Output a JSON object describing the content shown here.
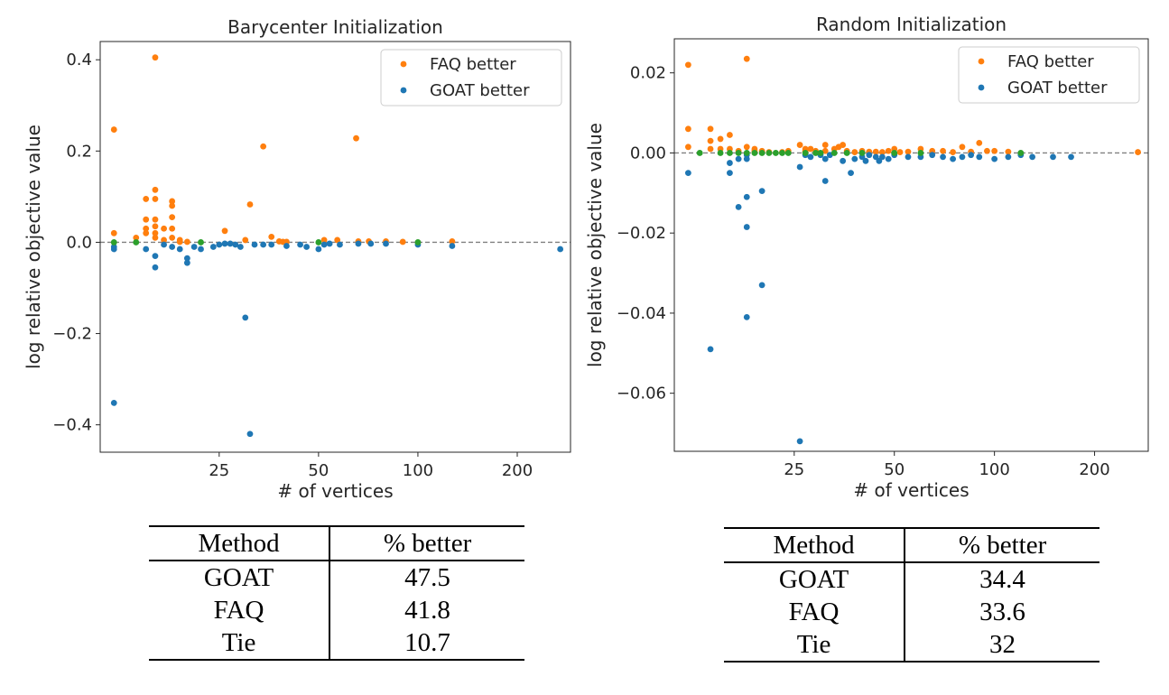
{
  "colors": {
    "faq": "#ff7f0e",
    "goat": "#1f77b4",
    "tie": "#2ca02c",
    "baseline": "#808080",
    "axis": "#262626"
  },
  "chart_data": [
    {
      "type": "scatter",
      "title": "Barycenter Initialization",
      "xlabel": "# of vertices",
      "ylabel": "log relative objective value",
      "xscale": "log",
      "xlim": [
        10.9,
        290
      ],
      "ylim": [
        -0.46,
        0.44
      ],
      "xticks": [
        25,
        50,
        100,
        200
      ],
      "xtick_labels": [
        "25",
        "50",
        "100",
        "200"
      ],
      "yticks": [
        -0.4,
        -0.2,
        0.0,
        0.2,
        0.4
      ],
      "ytick_labels": [
        "−0.4",
        "−0.2",
        "0.0",
        "0.2",
        "0.4"
      ],
      "baseline": 0,
      "legend": {
        "position": "top-right",
        "entries": [
          "FAQ better",
          "GOAT better"
        ]
      },
      "series": [
        {
          "name": "FAQ better",
          "color_key": "faq",
          "x": [
            12,
            12,
            14,
            15,
            15,
            15,
            15,
            16,
            16,
            16,
            16,
            16,
            16,
            16,
            17,
            17,
            18,
            18,
            18,
            18,
            18,
            19,
            19,
            19,
            20,
            26,
            30,
            31,
            34,
            36,
            38,
            39,
            40,
            52,
            57,
            65,
            66,
            71,
            80,
            90,
            127
          ],
          "y": [
            0.247,
            0.02,
            0.01,
            0.095,
            0.05,
            0.03,
            0.02,
            0.405,
            0.115,
            0.095,
            0.05,
            0.035,
            0.02,
            0.01,
            0.03,
            0.005,
            0.09,
            0.08,
            0.055,
            0.03,
            0.01,
            0.005,
            0.002,
            0.001,
            0.001,
            0.025,
            0.005,
            0.083,
            0.21,
            0.012,
            0.002,
            0.001,
            0.001,
            0.005,
            0.005,
            0.228,
            0.002,
            0.002,
            0.002,
            0.001,
            0.002
          ]
        },
        {
          "name": "GOAT better",
          "color_key": "goat",
          "x": [
            12,
            12,
            12,
            15,
            16,
            16,
            17,
            18,
            19,
            20,
            20,
            21,
            22,
            24,
            25,
            26,
            27,
            28,
            29,
            30,
            31,
            32,
            34,
            36,
            40,
            44,
            46,
            50,
            52,
            54,
            58,
            66,
            72,
            80,
            100,
            127,
            270
          ],
          "y": [
            -0.352,
            -0.01,
            -0.015,
            -0.015,
            -0.055,
            -0.03,
            -0.005,
            -0.01,
            -0.015,
            -0.035,
            -0.045,
            -0.01,
            -0.015,
            -0.01,
            -0.005,
            -0.003,
            -0.003,
            -0.005,
            -0.01,
            -0.165,
            -0.42,
            -0.005,
            -0.005,
            -0.005,
            -0.008,
            -0.005,
            -0.01,
            -0.015,
            -0.005,
            -0.003,
            -0.005,
            -0.003,
            -0.003,
            -0.003,
            -0.005,
            -0.008,
            -0.015
          ]
        },
        {
          "name": "Tie",
          "color_key": "tie",
          "x": [
            12,
            14,
            22,
            50,
            100
          ],
          "y": [
            0,
            0,
            0,
            0,
            0
          ]
        }
      ],
      "table": {
        "headers": [
          "Method",
          "% better"
        ],
        "rows": [
          [
            "GOAT",
            "47.5"
          ],
          [
            "FAQ",
            "41.8"
          ],
          [
            "Tie",
            "10.7"
          ]
        ]
      }
    },
    {
      "type": "scatter",
      "title": "Random Initialization",
      "xlabel": "# of vertices",
      "ylabel": "log relative objective value",
      "xscale": "log",
      "xlim": [
        10.9,
        290
      ],
      "ylim": [
        -0.0745,
        0.0285
      ],
      "xticks": [
        25,
        50,
        100,
        200
      ],
      "xtick_labels": [
        "25",
        "50",
        "100",
        "200"
      ],
      "yticks": [
        -0.06,
        -0.04,
        -0.02,
        0.0,
        0.02
      ],
      "ytick_labels": [
        "−0.06",
        "−0.04",
        "−0.02",
        "0.00",
        "0.02"
      ],
      "baseline": 0,
      "legend": {
        "position": "top-right",
        "entries": [
          "FAQ better",
          "GOAT better"
        ]
      },
      "series": [
        {
          "name": "FAQ better",
          "color_key": "faq",
          "x": [
            12,
            12,
            12,
            14,
            14,
            14,
            15,
            15,
            16,
            16,
            17,
            18,
            18,
            19,
            19,
            19,
            20,
            21,
            23,
            24,
            26,
            27,
            27,
            27,
            28,
            29,
            31,
            31,
            33,
            34,
            35,
            36,
            38,
            40,
            42,
            44,
            46,
            48,
            50,
            52,
            55,
            60,
            65,
            70,
            75,
            80,
            85,
            90,
            95,
            100,
            110,
            270
          ],
          "y": [
            0.022,
            0.006,
            0.0015,
            0.006,
            0.003,
            0.001,
            0.0035,
            0.001,
            0.0045,
            0.001,
            0.0005,
            0.0235,
            0.0015,
            0.001,
            0.0005,
            0.0002,
            0.0005,
            0.0002,
            0.0002,
            0.0005,
            0.002,
            0.001,
            0.0005,
            0.0002,
            0.001,
            0.0005,
            0.002,
            0.0005,
            0.001,
            0.0015,
            0.002,
            0.0005,
            0.0002,
            0.0005,
            0.0003,
            0.0003,
            0.0002,
            0.0005,
            0.001,
            0.0002,
            0.0003,
            0.001,
            0.0005,
            0.0005,
            0.0002,
            0.0015,
            0.0003,
            0.0025,
            0.0005,
            0.0005,
            0.0003,
            0.0002
          ]
        },
        {
          "name": "GOAT better",
          "color_key": "goat",
          "x": [
            12,
            14,
            16,
            16,
            17,
            17,
            18,
            18,
            18,
            18,
            18,
            20,
            20,
            26,
            26,
            27,
            28,
            30,
            31,
            31,
            32,
            35,
            37,
            38,
            40,
            41,
            42,
            44,
            45,
            46,
            48,
            50,
            55,
            60,
            65,
            70,
            75,
            80,
            85,
            90,
            100,
            110,
            120,
            130,
            150,
            170
          ],
          "y": [
            -0.005,
            -0.049,
            -0.0025,
            -0.005,
            -0.0135,
            -0.0015,
            -0.011,
            -0.0185,
            -0.041,
            -0.0015,
            -0.0005,
            -0.0095,
            -0.033,
            -0.072,
            -0.0035,
            -0.0005,
            -0.001,
            -0.0005,
            -0.007,
            -0.0015,
            -0.0005,
            -0.002,
            -0.005,
            -0.0015,
            -0.001,
            -0.002,
            -0.0005,
            -0.001,
            -0.002,
            -0.001,
            -0.0015,
            -0.0005,
            -0.001,
            -0.001,
            -0.0005,
            -0.001,
            -0.0015,
            -0.001,
            -0.0005,
            -0.001,
            -0.0015,
            -0.001,
            -0.0005,
            -0.001,
            -0.001,
            -0.001
          ]
        },
        {
          "name": "Tie",
          "color_key": "tie",
          "x": [
            13,
            15,
            16,
            17,
            18,
            19,
            20,
            21,
            22,
            23,
            24,
            27,
            29,
            30,
            33,
            36,
            40,
            50,
            60,
            120
          ],
          "y": [
            0,
            0,
            0,
            0,
            0,
            0,
            0,
            0,
            0,
            0,
            0,
            0,
            0,
            0,
            0,
            0,
            0,
            0,
            0,
            0
          ]
        }
      ],
      "table": {
        "headers": [
          "Method",
          "% better"
        ],
        "rows": [
          [
            "GOAT",
            "34.4"
          ],
          [
            "FAQ",
            "33.6"
          ],
          [
            "Tie",
            "32"
          ]
        ]
      }
    }
  ]
}
